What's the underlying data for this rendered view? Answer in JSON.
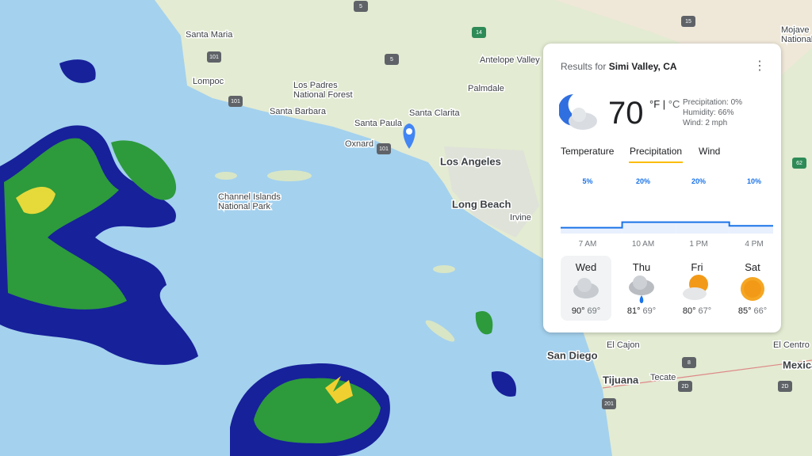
{
  "map": {
    "places": [
      "Santa Maria",
      "Lompoc",
      "Los Padres National Forest",
      "Santa Barbara",
      "Santa Paula",
      "Santa Clarita",
      "Oxnard",
      "Los Angeles",
      "Long Beach",
      "Irvine",
      "Channel Islands National Park",
      "Palmdale",
      "Antelope Valley",
      "Mojave National Preserve",
      "San Diego",
      "El Cajon",
      "Tijuana",
      "Tecate",
      "El Centro",
      "Mexica"
    ],
    "shields": [
      "101",
      "101",
      "101",
      "5",
      "5",
      "14",
      "15",
      "62",
      "8",
      "2D",
      "2D",
      "201"
    ]
  },
  "card": {
    "results_for": "Results for",
    "location": "Simi Valley, CA",
    "temperature": "70",
    "unit_f": "°F",
    "unit_c": "°C",
    "precipitation": "Precipitation: 0%",
    "humidity": "Humidity: 66%",
    "wind": "Wind: 2 mph",
    "tabs": [
      "Temperature",
      "Precipitation",
      "Wind"
    ],
    "chart": {
      "values": [
        5,
        20,
        20,
        10
      ],
      "value_labels": [
        "5%",
        "20%",
        "20%",
        "10%"
      ],
      "times": [
        "7 AM",
        "10 AM",
        "1 PM",
        "4 PM"
      ]
    },
    "days": [
      {
        "day": "Wed",
        "high": "90°",
        "low": "69°"
      },
      {
        "day": "Thu",
        "high": "81°",
        "low": "69°"
      },
      {
        "day": "Fri",
        "high": "80°",
        "low": "67°"
      },
      {
        "day": "Sat",
        "high": "85°",
        "low": "66°"
      }
    ]
  }
}
